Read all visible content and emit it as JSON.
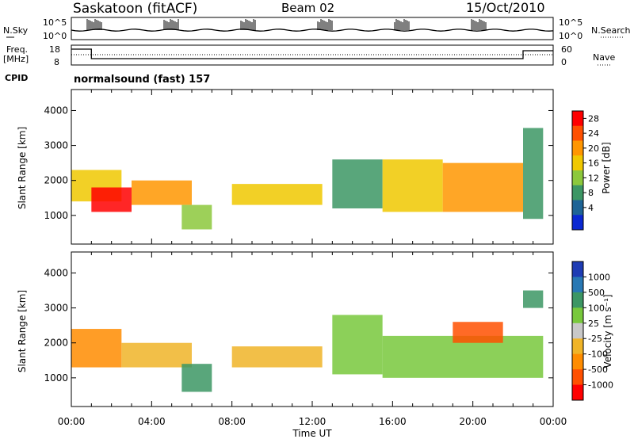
{
  "header": {
    "title": "Saskatoon (fitACF)",
    "beam": "Beam 02",
    "date": "15/Oct/2010"
  },
  "panel_labels": {
    "nsky": "N.Sky",
    "nsky_ticks": [
      "10^5",
      "10^0"
    ],
    "nsearch": "N.Search",
    "nsearch_ticks": [
      "10^5",
      "10^0"
    ],
    "freq": "Freq.",
    "freq_unit": "[MHz]",
    "freq_ticks": [
      "18",
      "8"
    ],
    "nave": "Nave",
    "nave_ticks": [
      "60",
      "0"
    ],
    "cpid": "CPID",
    "cpid_value": "normalsound (fast) 157"
  },
  "power_colorbar": {
    "label": "Power [dB]",
    "ticks": [
      "28",
      "24",
      "20",
      "16",
      "12",
      "8",
      "4"
    ],
    "colors": [
      "#ff0000",
      "#ff5000",
      "#ff9600",
      "#f0c800",
      "#8cc83c",
      "#3c9664",
      "#1e6496",
      "#0a28d2"
    ]
  },
  "velocity_colorbar": {
    "label": "Velocity [m s⁻¹]",
    "ticks": [
      "1000",
      "500",
      "100",
      "25",
      "-25",
      "-100",
      "-500",
      "-1000"
    ],
    "colors": [
      "#1e3cb4",
      "#2878b4",
      "#3c9664",
      "#78c83c",
      "#c8c8c8",
      "#f0b428",
      "#ff8c00",
      "#ff5000",
      "#ff0000"
    ]
  },
  "chart_data": [
    {
      "type": "heatmap",
      "name": "Power",
      "xlabel": "Time UT",
      "ylabel": "Slant Range [km]",
      "xlim": [
        "00:00",
        "24:00"
      ],
      "ylim": [
        180,
        4600
      ],
      "x_ticks": [
        "00:00",
        "04:00",
        "08:00",
        "12:00",
        "16:00",
        "20:00",
        "00:00"
      ],
      "y_ticks": [
        1000,
        2000,
        3000,
        4000
      ],
      "scale_label": "Power [dB]",
      "scale_range": [
        0,
        30
      ],
      "cells": [
        {
          "t0": 0.0,
          "t1": 2.5,
          "r0": 1400,
          "r1": 2300,
          "level": "16"
        },
        {
          "t0": 1.0,
          "t1": 3.0,
          "r0": 1100,
          "r1": 1800,
          "level": "28"
        },
        {
          "t0": 3.0,
          "t1": 6.0,
          "r0": 1300,
          "r1": 2000,
          "level": "20"
        },
        {
          "t0": 5.5,
          "t1": 7.0,
          "r0": 600,
          "r1": 1300,
          "level": "12"
        },
        {
          "t0": 8.0,
          "t1": 12.5,
          "r0": 1300,
          "r1": 1900,
          "level": "16"
        },
        {
          "t0": 13.0,
          "t1": 15.5,
          "r0": 1200,
          "r1": 2600,
          "level": "8"
        },
        {
          "t0": 15.5,
          "t1": 18.5,
          "r0": 1100,
          "r1": 2600,
          "level": "16"
        },
        {
          "t0": 18.5,
          "t1": 22.5,
          "r0": 1100,
          "r1": 2500,
          "level": "20"
        },
        {
          "t0": 22.5,
          "t1": 23.5,
          "r0": 900,
          "r1": 3500,
          "level": "8"
        }
      ]
    },
    {
      "type": "heatmap",
      "name": "Velocity",
      "xlabel": "Time UT",
      "ylabel": "Slant Range [km]",
      "xlim": [
        "00:00",
        "24:00"
      ],
      "ylim": [
        180,
        4600
      ],
      "x_ticks": [
        "00:00",
        "04:00",
        "08:00",
        "12:00",
        "16:00",
        "20:00",
        "00:00"
      ],
      "y_ticks": [
        1000,
        2000,
        3000,
        4000
      ],
      "scale_label": "Velocity [m s⁻¹]",
      "scale_range": [
        -1000,
        1000
      ],
      "cells": [
        {
          "t0": 0.0,
          "t1": 2.5,
          "r0": 1300,
          "r1": 2400,
          "level": "-500"
        },
        {
          "t0": 2.5,
          "t1": 6.0,
          "r0": 1300,
          "r1": 2000,
          "level": "-100"
        },
        {
          "t0": 5.5,
          "t1": 7.0,
          "r0": 600,
          "r1": 1400,
          "level": "100"
        },
        {
          "t0": 8.0,
          "t1": 12.5,
          "r0": 1300,
          "r1": 1900,
          "level": "-100"
        },
        {
          "t0": 13.0,
          "t1": 15.5,
          "r0": 1100,
          "r1": 2800,
          "level": "25"
        },
        {
          "t0": 15.5,
          "t1": 23.5,
          "r0": 1000,
          "r1": 2200,
          "level": "25"
        },
        {
          "t0": 19.0,
          "t1": 21.5,
          "r0": 2000,
          "r1": 2600,
          "level": "-1000"
        },
        {
          "t0": 22.5,
          "t1": 23.5,
          "r0": 3000,
          "r1": 3500,
          "level": "100"
        }
      ]
    }
  ]
}
